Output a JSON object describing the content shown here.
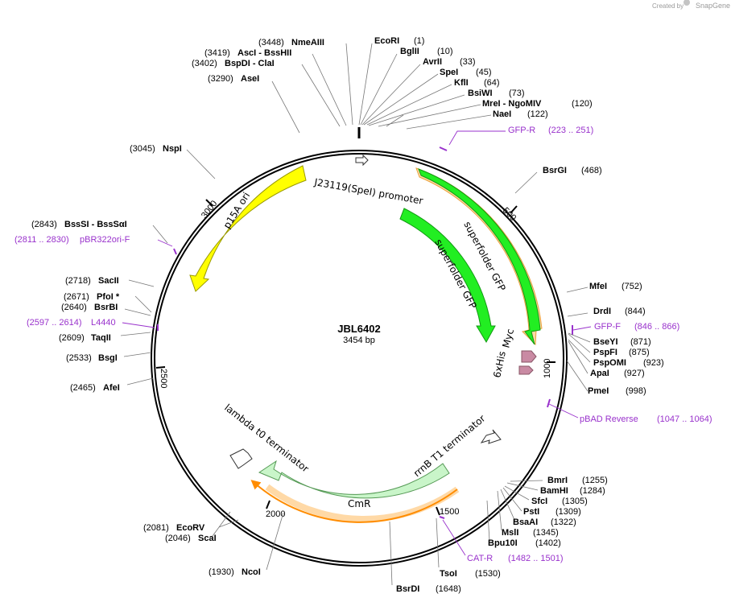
{
  "header": {
    "credit": "Created by",
    "brand": "SnapGene"
  },
  "plasmid": {
    "name": "JBL6402",
    "length_label": "3454 bp",
    "length_bp": 3454
  },
  "colors": {
    "gfp": "#22ee22",
    "ori": "#ffff00",
    "cmr": "#c9f5c9",
    "primer": "#9932cc",
    "orange": "#ff8c00",
    "myc": "#c98aa3"
  },
  "tick_labels": [
    "500",
    "1000",
    "1500",
    "2000",
    "2500",
    "3000"
  ],
  "features": [
    {
      "label": "J23119(SpeI) promoter"
    },
    {
      "label": "superfolder GFP"
    },
    {
      "label": "superfolder GFP"
    },
    {
      "label": "Myc"
    },
    {
      "label": "6xHis"
    },
    {
      "label": "rrnB T1 terminator"
    },
    {
      "label": "CmR"
    },
    {
      "label": "lambda t0 terminator"
    },
    {
      "label": "p15A ori"
    }
  ],
  "sites": [
    {
      "name": "EcoRI",
      "pos": "(1)"
    },
    {
      "name": "BglII",
      "pos": "(10)"
    },
    {
      "name": "AvrII",
      "pos": "(33)"
    },
    {
      "name": "SpeI",
      "pos": "(45)"
    },
    {
      "name": "KflI",
      "pos": "(64)"
    },
    {
      "name": "BsiWI",
      "pos": "(73)"
    },
    {
      "name": "MreI  -  NgoMIV",
      "pos": "(120)"
    },
    {
      "name": "NaeI",
      "pos": "(122)"
    },
    {
      "name": "BsrGI",
      "pos": "(468)"
    },
    {
      "name": "MfeI",
      "pos": "(752)"
    },
    {
      "name": "DrdI",
      "pos": "(844)"
    },
    {
      "name": "BseYI",
      "pos": "(871)"
    },
    {
      "name": "PspFI",
      "pos": "(875)"
    },
    {
      "name": "PspOMI",
      "pos": "(923)"
    },
    {
      "name": "ApaI",
      "pos": "(927)"
    },
    {
      "name": "PmeI",
      "pos": "(998)"
    },
    {
      "name": "BmrI",
      "pos": "(1255)"
    },
    {
      "name": "BamHI",
      "pos": "(1284)"
    },
    {
      "name": "SfcI",
      "pos": "(1305)"
    },
    {
      "name": "PstI",
      "pos": "(1309)"
    },
    {
      "name": "BsaAI",
      "pos": "(1322)"
    },
    {
      "name": "MslI",
      "pos": "(1345)"
    },
    {
      "name": "Bpu10I",
      "pos": "(1402)"
    },
    {
      "name": "TsoI",
      "pos": "(1530)"
    },
    {
      "name": "BsrDI",
      "pos": "(1648)"
    },
    {
      "name": "NcoI",
      "pos": "(1930)"
    },
    {
      "name": "ScaI",
      "pos": "(2046)"
    },
    {
      "name": "EcoRV",
      "pos": "(2081)"
    },
    {
      "name": "AfeI",
      "pos": "(2465)"
    },
    {
      "name": "BsgI",
      "pos": "(2533)"
    },
    {
      "name": "TaqII",
      "pos": "(2609)"
    },
    {
      "name": "BsrBI",
      "pos": "(2640)"
    },
    {
      "name": "PfoI *",
      "pos": "(2671)"
    },
    {
      "name": "SacII",
      "pos": "(2718)"
    },
    {
      "name": "BssSI  -  BssSαI",
      "pos": "(2843)"
    },
    {
      "name": "NspI",
      "pos": "(3045)"
    },
    {
      "name": "AseI",
      "pos": "(3290)"
    },
    {
      "name": "BspDI  -  ClaI",
      "pos": "(3402)"
    },
    {
      "name": "AscI  -  BssHII",
      "pos": "(3419)"
    },
    {
      "name": "NmeAIII",
      "pos": "(3448)"
    }
  ],
  "primers": [
    {
      "name": "GFP-R",
      "range": "(223 .. 251)"
    },
    {
      "name": "GFP-F",
      "range": "(846 .. 866)"
    },
    {
      "name": "pBAD Reverse",
      "range": "(1047 .. 1064)"
    },
    {
      "name": "CAT-R",
      "range": "(1482 .. 1501)"
    },
    {
      "name": "L4440",
      "range": "(2597 .. 2614)"
    },
    {
      "name": "pBR322ori-F",
      "range": "(2811 .. 2830)"
    }
  ]
}
